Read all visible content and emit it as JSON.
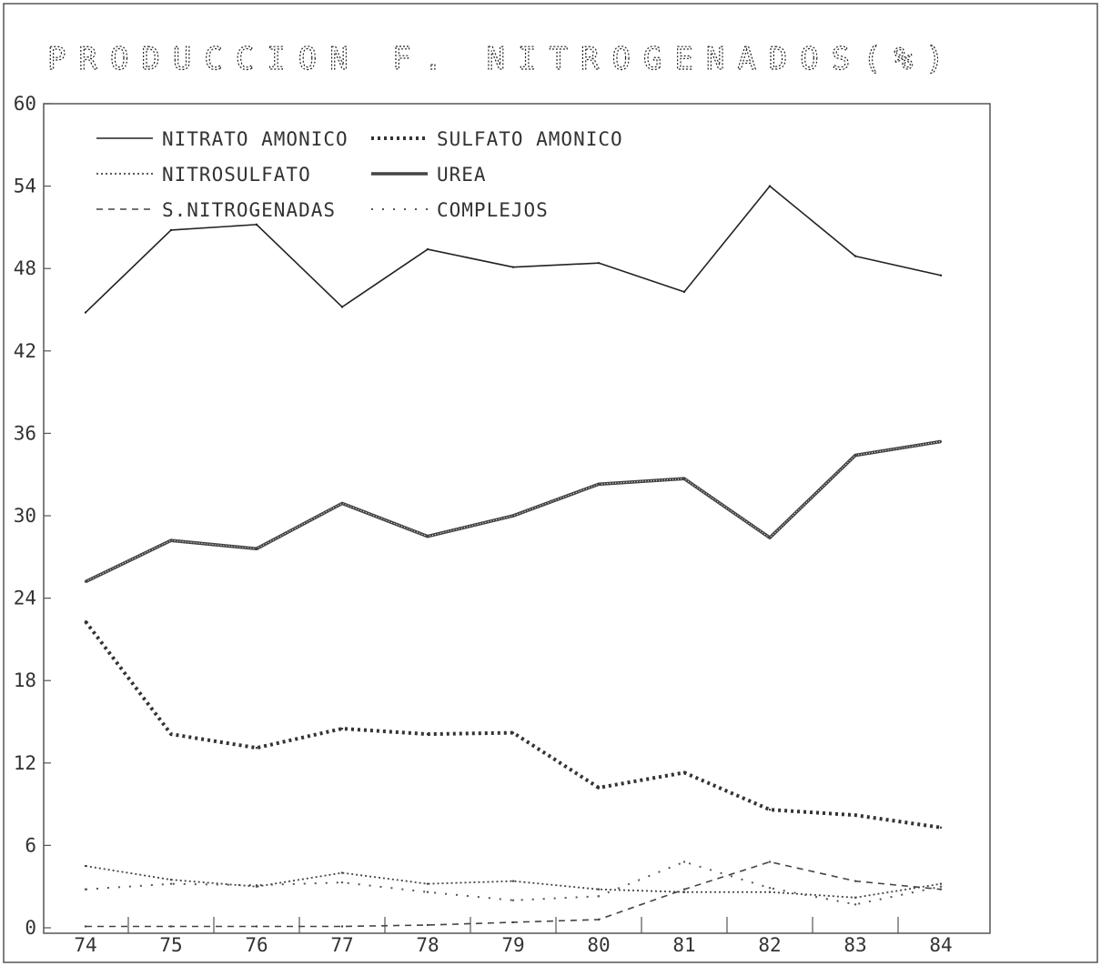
{
  "chart_data": {
    "type": "line",
    "title": "PRODUCCION F. NITROGENADOS(%)",
    "x": [
      "74",
      "75",
      "76",
      "77",
      "78",
      "79",
      "80",
      "81",
      "82",
      "83",
      "84"
    ],
    "ylim": [
      0,
      60
    ],
    "yticks": [
      "0",
      "6",
      "12",
      "18",
      "24",
      "30",
      "36",
      "42",
      "48",
      "54",
      "60"
    ],
    "grid": false,
    "legend_position": "top-left",
    "series": [
      {
        "name": "NITRATO AMONICO",
        "style": "solid",
        "color": "#222222",
        "values": [
          44.8,
          50.8,
          51.2,
          45.2,
          49.4,
          48.1,
          48.4,
          46.3,
          54.0,
          48.9,
          47.5
        ]
      },
      {
        "name": "SULFATO AMONICO",
        "style": "square-dots",
        "color": "#333333",
        "values": [
          22.3,
          14.1,
          13.1,
          14.5,
          14.1,
          14.2,
          10.2,
          11.3,
          8.6,
          8.2,
          7.3
        ]
      },
      {
        "name": "NITROSULFATO",
        "style": "dotted",
        "color": "#444444",
        "values": [
          4.5,
          3.5,
          3.0,
          4.0,
          3.2,
          3.4,
          2.8,
          2.6,
          2.6,
          2.2,
          3.2
        ]
      },
      {
        "name": "UREA",
        "style": "double",
        "color": "#444444",
        "values": [
          25.2,
          28.2,
          27.6,
          30.9,
          28.5,
          30.0,
          32.3,
          32.7,
          28.4,
          34.4,
          35.4
        ]
      },
      {
        "name": "S.NITROGENADAS",
        "style": "dashed",
        "color": "#444444",
        "values": [
          0.1,
          0.1,
          0.1,
          0.1,
          0.2,
          0.4,
          0.6,
          2.8,
          4.8,
          3.4,
          2.8
        ]
      },
      {
        "name": "COMPLEJOS",
        "style": "sparse-dots",
        "color": "#555555",
        "values": [
          2.8,
          3.2,
          3.1,
          3.3,
          2.6,
          2.0,
          2.3,
          4.8,
          2.9,
          1.7,
          3.0
        ]
      }
    ]
  }
}
